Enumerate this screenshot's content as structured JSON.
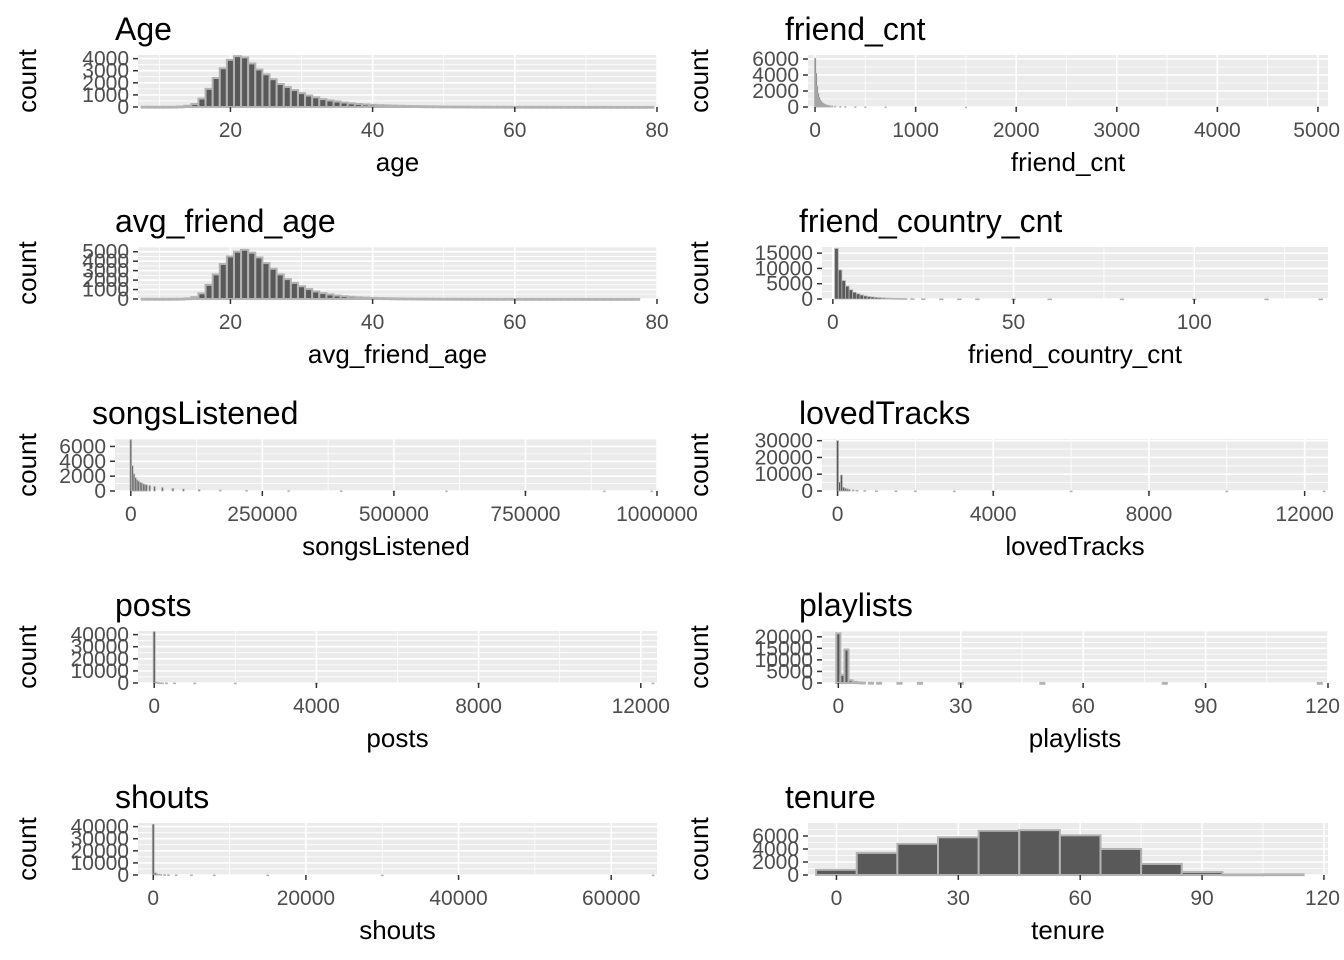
{
  "colors": {
    "panel_bg": "#ebebeb",
    "grid": "#ffffff",
    "bar_fill": "#595959",
    "bar_outline": "#b3b3b3",
    "axis_tick": "#333333"
  },
  "chart_data": [
    {
      "type": "bar",
      "title": "Age",
      "xlabel": "age",
      "ylabel": "count",
      "xlim": [
        7,
        80
      ],
      "ylim": [
        0,
        4300
      ],
      "x_ticks": [
        20,
        40,
        60,
        80
      ],
      "y_ticks": [
        0,
        1000,
        2000,
        3000,
        4000
      ],
      "bin_width": 1,
      "x": [
        8,
        9,
        10,
        11,
        12,
        13,
        14,
        15,
        16,
        17,
        18,
        19,
        20,
        21,
        22,
        23,
        24,
        25,
        26,
        27,
        28,
        29,
        30,
        31,
        32,
        33,
        34,
        35,
        36,
        37,
        38,
        39,
        40,
        41,
        42,
        43,
        44,
        45,
        46,
        47,
        48,
        49,
        50,
        51,
        52,
        53,
        54,
        55,
        56,
        57,
        58,
        59,
        60,
        61,
        62,
        63,
        64,
        65,
        66,
        67,
        68,
        69,
        70,
        71,
        72,
        73,
        74,
        75,
        76,
        77,
        78,
        79
      ],
      "values": [
        20,
        15,
        15,
        15,
        20,
        40,
        100,
        250,
        700,
        1500,
        2400,
        3200,
        3900,
        4200,
        4100,
        3600,
        3100,
        2700,
        2300,
        1900,
        1650,
        1400,
        1150,
        950,
        800,
        650,
        540,
        450,
        370,
        300,
        250,
        210,
        180,
        150,
        130,
        110,
        95,
        80,
        70,
        60,
        52,
        45,
        40,
        35,
        30,
        28,
        25,
        22,
        20,
        18,
        17,
        15,
        14,
        13,
        12,
        11,
        10,
        10,
        9,
        9,
        8,
        8,
        7,
        7,
        6,
        6,
        6,
        5,
        5,
        5,
        5,
        5
      ]
    },
    {
      "type": "bar",
      "title": "friend_cnt",
      "xlabel": "friend_cnt",
      "ylabel": "count",
      "xlim": [
        -70,
        5100
      ],
      "ylim": [
        0,
        6500
      ],
      "x_ticks": [
        0,
        1000,
        2000,
        3000,
        4000,
        5000
      ],
      "y_ticks": [
        0,
        2000,
        4000,
        6000
      ],
      "bin_width": 10,
      "x": [
        0,
        10,
        20,
        30,
        40,
        50,
        60,
        70,
        80,
        90,
        100,
        110,
        120,
        130,
        140,
        150,
        170,
        200,
        250,
        300,
        400,
        500,
        700,
        1000,
        1500,
        2000,
        3000,
        4000,
        5000
      ],
      "values": [
        6100,
        4200,
        2600,
        1700,
        1200,
        900,
        700,
        560,
        450,
        370,
        310,
        260,
        220,
        190,
        165,
        145,
        120,
        95,
        70,
        55,
        35,
        25,
        15,
        10,
        6,
        4,
        3,
        2,
        2
      ]
    },
    {
      "type": "bar",
      "title": "avg_friend_age",
      "xlabel": "avg_friend_age",
      "ylabel": "count",
      "xlim": [
        7,
        80
      ],
      "ylim": [
        0,
        5500
      ],
      "x_ticks": [
        20,
        40,
        60,
        80
      ],
      "y_ticks": [
        0,
        1000,
        2000,
        3000,
        4000,
        5000
      ],
      "bin_width": 1,
      "x": [
        8,
        9,
        10,
        11,
        12,
        13,
        14,
        15,
        16,
        17,
        18,
        19,
        20,
        21,
        22,
        23,
        24,
        25,
        26,
        27,
        28,
        29,
        30,
        31,
        32,
        33,
        34,
        35,
        36,
        37,
        38,
        39,
        40,
        41,
        42,
        43,
        44,
        45,
        46,
        47,
        48,
        49,
        50,
        51,
        52,
        53,
        54,
        55,
        56,
        57,
        58,
        59,
        60,
        61,
        62,
        63,
        64,
        65,
        66,
        67,
        68,
        69,
        70,
        71,
        72,
        73,
        74,
        75,
        76,
        77
      ],
      "values": [
        15,
        12,
        12,
        12,
        15,
        25,
        60,
        200,
        600,
        1500,
        2600,
        3700,
        4500,
        5000,
        5200,
        4900,
        4400,
        3800,
        3200,
        2600,
        2100,
        1700,
        1350,
        1050,
        800,
        620,
        480,
        370,
        290,
        230,
        180,
        145,
        115,
        92,
        75,
        60,
        50,
        42,
        35,
        30,
        26,
        22,
        19,
        17,
        15,
        13,
        12,
        11,
        10,
        9,
        8,
        8,
        7,
        7,
        6,
        6,
        5,
        5,
        5,
        4,
        4,
        4,
        4,
        3,
        3,
        3,
        3,
        3,
        3,
        3
      ]
    },
    {
      "type": "bar",
      "title": "friend_country_cnt",
      "xlabel": "friend_country_cnt",
      "ylabel": "count",
      "xlim": [
        -3,
        137
      ],
      "ylim": [
        0,
        17000
      ],
      "x_ticks": [
        0,
        50,
        100
      ],
      "y_ticks": [
        0,
        5000,
        10000,
        15000
      ],
      "bin_width": 1,
      "x": [
        1,
        2,
        3,
        4,
        5,
        6,
        7,
        8,
        9,
        10,
        11,
        12,
        13,
        14,
        15,
        16,
        17,
        18,
        19,
        20,
        22,
        25,
        30,
        35,
        40,
        50,
        60,
        80,
        100,
        120,
        135
      ],
      "values": [
        16500,
        9500,
        6000,
        4200,
        3000,
        2200,
        1700,
        1300,
        1000,
        800,
        650,
        520,
        430,
        350,
        290,
        240,
        200,
        170,
        145,
        125,
        95,
        70,
        45,
        30,
        20,
        12,
        8,
        4,
        3,
        2,
        2
      ]
    },
    {
      "type": "bar",
      "title": "songsListened",
      "xlabel": "songsListened",
      "ylabel": "count",
      "xlim": [
        -30000,
        1000000
      ],
      "ylim": [
        0,
        7000
      ],
      "x_ticks": [
        0,
        250000,
        500000,
        750000,
        1000000
      ],
      "y_ticks": [
        0,
        2000,
        4000,
        6000
      ],
      "tick_labels": [
        "0",
        "250000",
        "500000",
        "750000",
        "1000000"
      ],
      "bin_width": 3000,
      "x": [
        0,
        3000,
        6000,
        9000,
        12000,
        15000,
        18000,
        21000,
        24000,
        27000,
        30000,
        36000,
        45000,
        60000,
        80000,
        100000,
        130000,
        170000,
        220000,
        300000,
        400000,
        500000,
        600000,
        750000,
        900000,
        990000
      ],
      "values": [
        6900,
        3400,
        2300,
        1800,
        1500,
        1300,
        1150,
        1050,
        950,
        880,
        820,
        720,
        600,
        460,
        340,
        260,
        180,
        120,
        80,
        45,
        25,
        15,
        10,
        6,
        4,
        3
      ]
    },
    {
      "type": "bar",
      "title": "lovedTracks",
      "xlabel": "lovedTracks",
      "ylabel": "count",
      "xlim": [
        -400,
        12600
      ],
      "ylim": [
        0,
        31000
      ],
      "x_ticks": [
        0,
        4000,
        8000,
        12000
      ],
      "y_ticks": [
        0,
        10000,
        20000,
        30000
      ],
      "bin_width": 50,
      "x": [
        0,
        50,
        100,
        150,
        200,
        250,
        300,
        400,
        500,
        700,
        1000,
        1500,
        2000,
        3000,
        4000,
        6000,
        8000,
        10000,
        12500
      ],
      "values": [
        30000,
        5200,
        9500,
        2200,
        1600,
        1200,
        900,
        600,
        420,
        250,
        140,
        70,
        40,
        20,
        10,
        5,
        3,
        2,
        2
      ]
    },
    {
      "type": "bar",
      "title": "posts",
      "xlabel": "posts",
      "ylabel": "count",
      "xlim": [
        -400,
        12400
      ],
      "ylim": [
        0,
        43000
      ],
      "x_ticks": [
        0,
        4000,
        8000,
        12000
      ],
      "y_ticks": [
        0,
        10000,
        20000,
        30000,
        40000
      ],
      "bin_width": 50,
      "x": [
        0,
        50,
        100,
        150,
        200,
        300,
        500,
        1000,
        2000,
        4000,
        8000,
        12300
      ],
      "values": [
        42500,
        800,
        250,
        120,
        70,
        40,
        20,
        8,
        4,
        2,
        1,
        1
      ]
    },
    {
      "type": "bar",
      "title": "playlists",
      "xlabel": "playlists",
      "ylabel": "count",
      "xlim": [
        -4,
        120
      ],
      "ylim": [
        0,
        22500
      ],
      "x_ticks": [
        0,
        30,
        60,
        90,
        120
      ],
      "y_ticks": [
        0,
        5000,
        10000,
        15000,
        20000
      ],
      "bin_width": 1,
      "x": [
        0,
        1,
        2,
        3,
        4,
        5,
        6,
        8,
        10,
        15,
        20,
        30,
        50,
        80,
        118
      ],
      "values": [
        21500,
        3500,
        14500,
        1200,
        500,
        250,
        150,
        80,
        50,
        25,
        15,
        8,
        4,
        2,
        1
      ]
    },
    {
      "type": "bar",
      "title": "shouts",
      "xlabel": "shouts",
      "ylabel": "count",
      "xlim": [
        -2000,
        66000
      ],
      "ylim": [
        0,
        43000
      ],
      "x_ticks": [
        0,
        20000,
        40000,
        60000
      ],
      "y_ticks": [
        0,
        10000,
        20000,
        30000,
        40000
      ],
      "bin_width": 250,
      "x": [
        0,
        250,
        500,
        750,
        1000,
        1500,
        2000,
        3000,
        5000,
        8000,
        15000,
        30000,
        65500
      ],
      "values": [
        42000,
        1800,
        900,
        600,
        450,
        300,
        200,
        120,
        60,
        30,
        10,
        4,
        2
      ]
    },
    {
      "type": "bar",
      "title": "tenure",
      "xlabel": "tenure",
      "ylabel": "count",
      "xlim": [
        -7,
        121
      ],
      "ylim": [
        0,
        8000
      ],
      "x_ticks": [
        0,
        30,
        60,
        90,
        120
      ],
      "y_ticks": [
        0,
        2000,
        4000,
        6000
      ],
      "bin_width": 10,
      "x": [
        0,
        10,
        20,
        30,
        40,
        50,
        60,
        70,
        80,
        90,
        100,
        110
      ],
      "values": [
        800,
        3400,
        4800,
        5800,
        6800,
        6900,
        6100,
        4000,
        1700,
        450,
        80,
        100
      ]
    }
  ]
}
